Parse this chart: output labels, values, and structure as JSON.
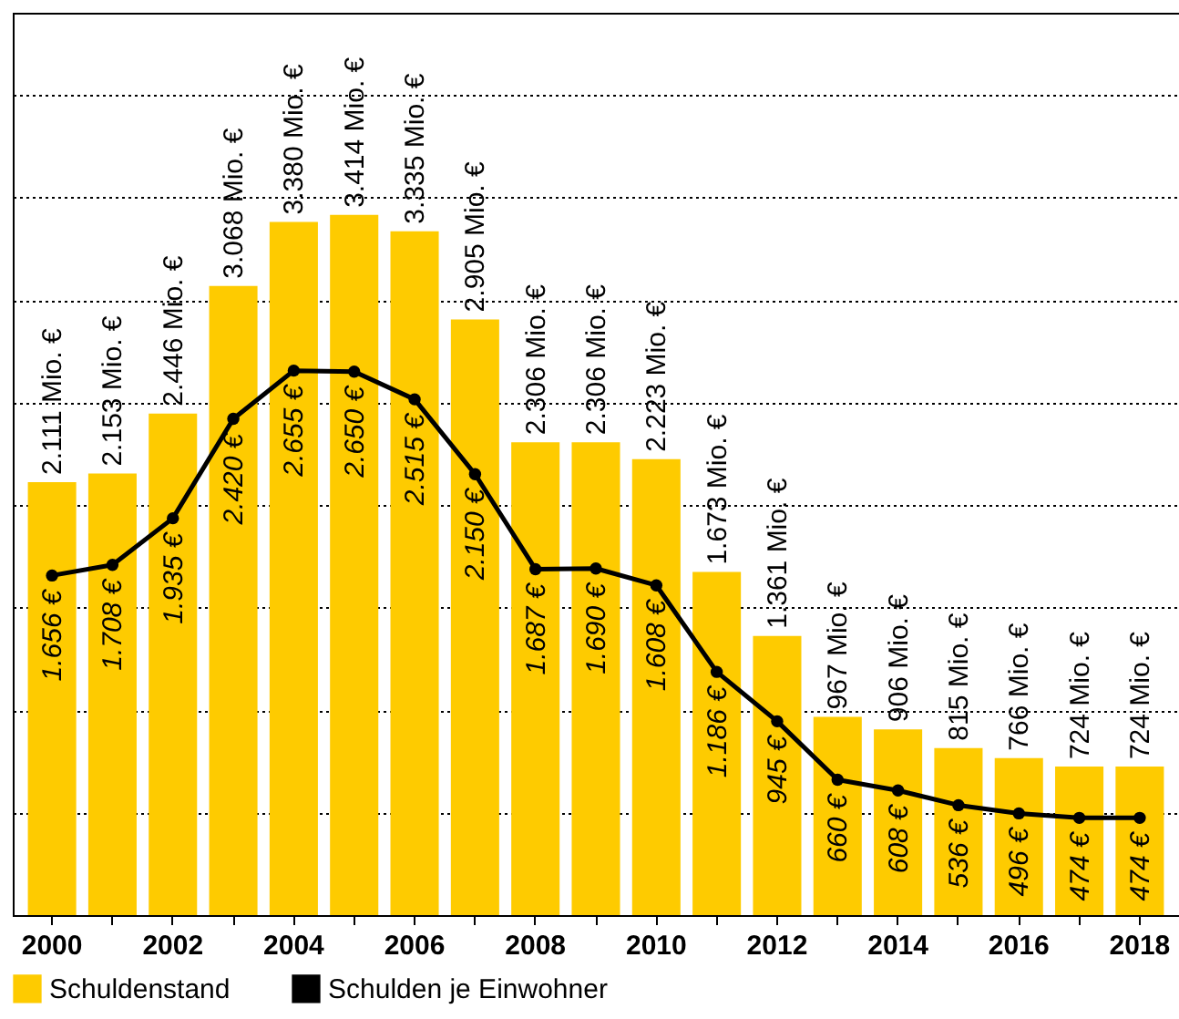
{
  "chart_data": {
    "type": "bar",
    "categories": [
      "2000",
      null,
      "2002",
      null,
      "2004",
      null,
      "2006",
      null,
      "2008",
      null,
      "2010",
      null,
      "2012",
      null,
      "2014",
      null,
      "2016",
      null,
      "2018"
    ],
    "series": [
      {
        "name": "Schuldenstand",
        "type": "bar",
        "color": "#fecb00",
        "values": [
          2111,
          2153,
          2446,
          3068,
          3380,
          3414,
          3335,
          2905,
          2306,
          2306,
          2223,
          1673,
          1361,
          967,
          906,
          815,
          766,
          724,
          724
        ],
        "value_labels": [
          "2.111 Mio. €",
          "2.153 Mio. €",
          "2.446 Mio. €",
          "3.068 Mio. €",
          "3.380 Mio. €",
          "3.414 Mio. €",
          "3.335 Mio. €",
          "2.905 Mio. €",
          "2.306 Mio. €",
          "2.306 Mio. €",
          "2.223 Mio. €",
          "1.673 Mio. €",
          "1.361 Mio. €",
          "967 Mio. €",
          "906 Mio. €",
          "815 Mio. €",
          "766 Mio. €",
          "724 Mio. €",
          "724 Mio. €"
        ]
      },
      {
        "name": "Schulden je Einwohner",
        "type": "line",
        "color": "#000000",
        "values": [
          1656,
          1708,
          1935,
          2420,
          2655,
          2650,
          2515,
          2150,
          1687,
          1690,
          1608,
          1186,
          945,
          660,
          608,
          536,
          496,
          474,
          474
        ],
        "value_labels": [
          "1.656 €",
          "1.708 €",
          "1.935 €",
          "2.420 €",
          "2.655 €",
          "2.650 €",
          "2.515 €",
          "2.150 €",
          "1.687 €",
          "1.690 €",
          "1.608 €",
          "1.186 €",
          "945 €",
          "660 €",
          "608 €",
          "536 €",
          "496 €",
          "474 €",
          "474 €"
        ]
      }
    ],
    "ylim": [
      0,
      4400
    ],
    "yticks": [
      {
        "value": 500,
        "label": null
      },
      {
        "value": 1000,
        "label": null
      },
      {
        "value": 1500,
        "label": null
      },
      {
        "value": 2000,
        "label": null
      },
      {
        "value": 2500,
        "label": null
      },
      {
        "value": 3000,
        "label": null
      },
      {
        "value": 3500,
        "label": null
      },
      {
        "value": 4000,
        "label": null
      }
    ],
    "grid": "y",
    "tick_labels": "x",
    "legend": "bottom",
    "marker": "circle",
    "line_style": "solid"
  }
}
